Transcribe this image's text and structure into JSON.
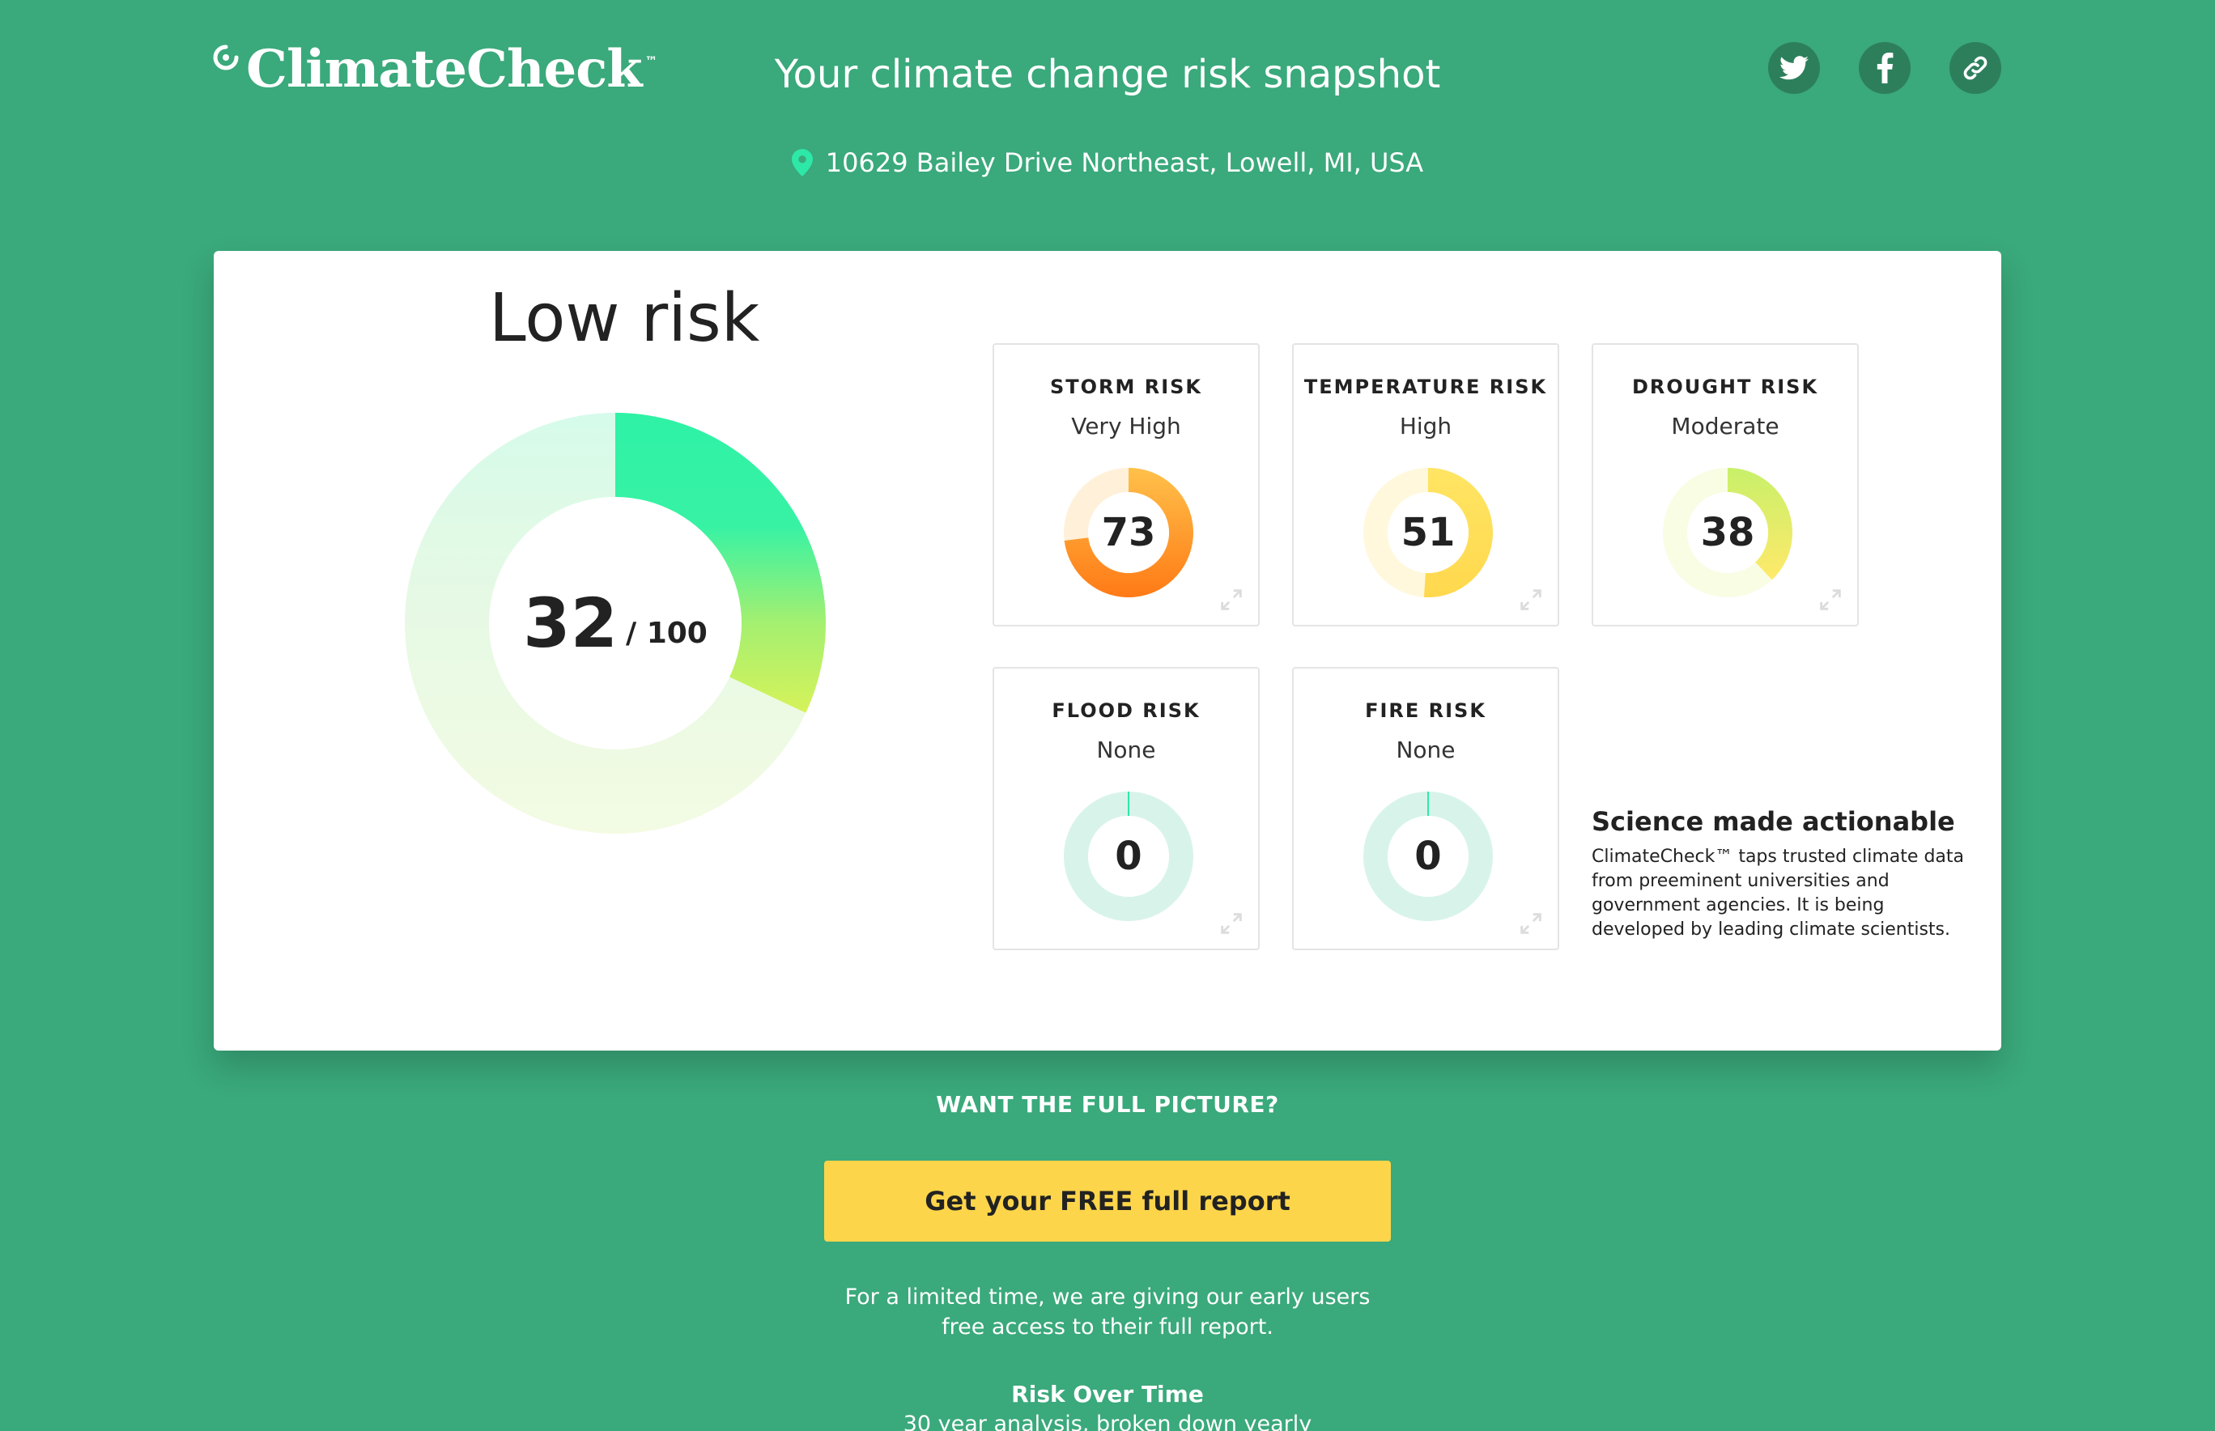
{
  "header": {
    "brand": "ClimateCheck",
    "brand_tm": "™",
    "tagline": "Your climate change risk snapshot",
    "share": [
      {
        "icon": "twitter-icon",
        "label": "Twitter"
      },
      {
        "icon": "facebook-icon",
        "label": "Facebook"
      },
      {
        "icon": "link-icon",
        "label": "Copy link"
      }
    ]
  },
  "address": {
    "icon": "location-pin-icon",
    "text": "10629 Bailey Drive Northeast, Lowell, MI, USA"
  },
  "overall": {
    "title": "Low risk",
    "score": "32",
    "max": "/ 100",
    "score_value": 32,
    "max_value": 100
  },
  "risks": [
    {
      "title": "STORM RISK",
      "level": "Very High",
      "score": "73",
      "value": 73,
      "colors": [
        "#ff7a16",
        "#ffc14a"
      ],
      "track": "#fff1d9"
    },
    {
      "title": "TEMPERATURE RISK",
      "level": "High",
      "score": "51",
      "value": 51,
      "colors": [
        "#ffd84d",
        "#ffe564"
      ],
      "track": "#fff8dd"
    },
    {
      "title": "DROUGHT RISK",
      "level": "Moderate",
      "score": "38",
      "value": 38,
      "colors": [
        "#ffe96a",
        "#c8f06a"
      ],
      "track": "#f8fde4"
    },
    {
      "title": "FLOOD RISK",
      "level": "None",
      "score": "0",
      "value": 0,
      "colors": [
        "#2ee8a8",
        "#2ee8a8"
      ],
      "track": "#d8f4ea"
    },
    {
      "title": "FIRE RISK",
      "level": "None",
      "score": "0",
      "value": 0,
      "colors": [
        "#2ee8a8",
        "#2ee8a8"
      ],
      "track": "#d8f4ea"
    }
  ],
  "science": {
    "title": "Science made actionable",
    "body": "ClimateCheck™ taps trusted climate data from preeminent universities and government agencies. It is being developed by leading climate scientists."
  },
  "cta": {
    "lead": "WANT THE FULL PICTURE?",
    "button": "Get your FREE full report",
    "note_line1": "For a limited time, we are giving our early users",
    "note_line2": "free access to their full report."
  },
  "risk_over_time": {
    "title": "Risk Over Time",
    "subtitle": "30 year analysis, broken down yearly"
  }
}
